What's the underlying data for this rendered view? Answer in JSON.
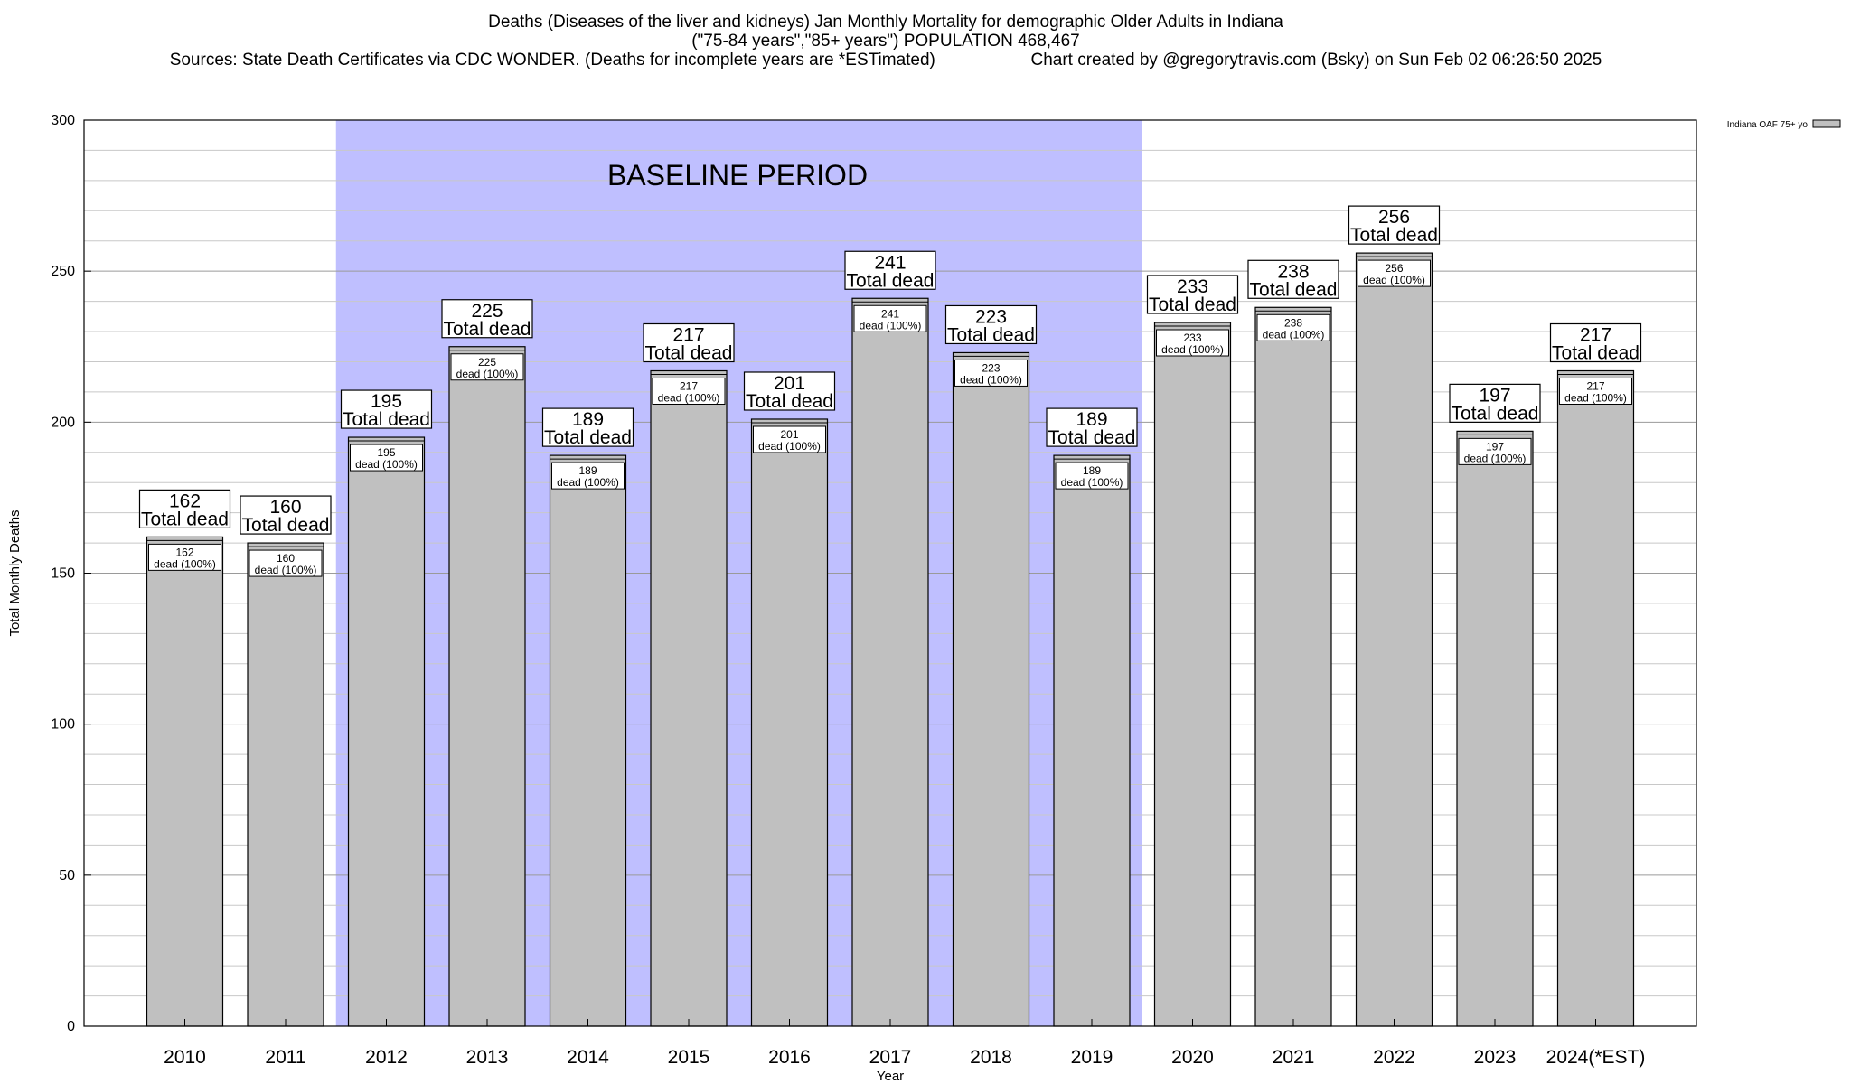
{
  "header": {
    "title_line1": "Deaths (Diseases of the liver and kidneys) Jan Monthly Mortality for demographic Older Adults in Indiana",
    "title_line2": "(\"75-84 years\",\"85+ years\") POPULATION 468,467",
    "sources": "Sources: State Death Certificates via CDC WONDER. (Deaths for incomplete years are *ESTimated)",
    "credit": "Chart created by @gregorytravis.com (Bsky) on Sun Feb 02 06:26:50 2025"
  },
  "chart_data": {
    "type": "bar",
    "categories": [
      "2010",
      "2011",
      "2012",
      "2013",
      "2014",
      "2015",
      "2016",
      "2017",
      "2018",
      "2019",
      "2020",
      "2021",
      "2022",
      "2023",
      "2024(*EST)"
    ],
    "series": [
      {
        "name": "Indiana OAF 75+ yo",
        "values": [
          162,
          160,
          195,
          225,
          189,
          217,
          201,
          241,
          223,
          189,
          233,
          238,
          256,
          197,
          217
        ],
        "color": "#c0c0c0"
      }
    ],
    "xlabel": "Year",
    "ylabel": "Total Monthly Deaths",
    "ylim": [
      0,
      300
    ],
    "yticks": [
      0,
      50,
      100,
      150,
      200,
      250,
      300
    ],
    "minor_grid_step": 10,
    "grid": true,
    "legend_position": "top-right, outside plot",
    "bar_label_top": "Total dead",
    "bar_label_inner": "dead (100%)",
    "baseline": {
      "label": "BASELINE PERIOD",
      "from": "2012",
      "to": "2019",
      "color": "#bfbfff"
    }
  }
}
